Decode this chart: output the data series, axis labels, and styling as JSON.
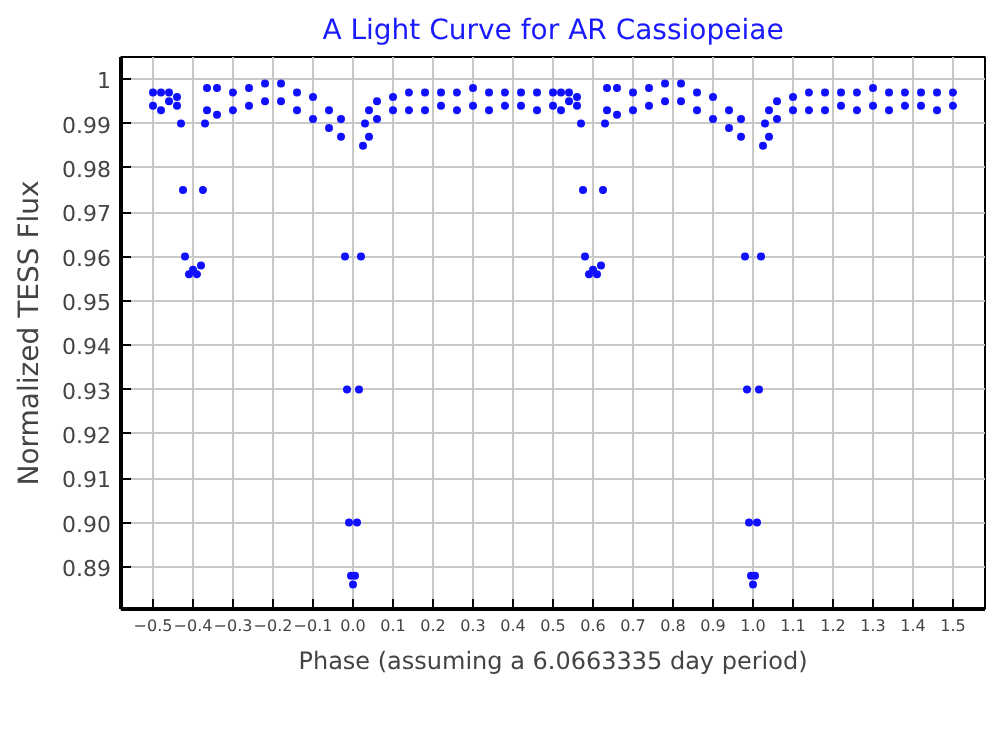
{
  "chart_data": {
    "type": "scatter",
    "title": "A Light Curve for AR Cassiopeiae",
    "xlabel": "Phase (assuming a 6.0663335 day period)",
    "ylabel": "Normalized TESS Flux",
    "xlim": [
      -0.58,
      1.58
    ],
    "ylim": [
      0.8805,
      1.005
    ],
    "xticks": [
      -0.5,
      -0.4,
      -0.3,
      -0.2,
      -0.1,
      {
        "value": 0,
        "label": "0.0"
      },
      0.1,
      0.2,
      0.3,
      0.4,
      0.5,
      0.6,
      0.7,
      0.8,
      0.9,
      {
        "value": 1,
        "label": "1.0"
      },
      1.1,
      1.2,
      1.3,
      1.4,
      1.5
    ],
    "yticks": [
      0.89,
      {
        "value": 0.9,
        "label": "0.90"
      },
      0.91,
      0.92,
      0.93,
      0.94,
      0.95,
      0.96,
      0.97,
      0.98,
      0.99,
      1
    ],
    "grid": true,
    "marker": "circle",
    "series": [
      {
        "color": "#1010ff",
        "x": [
          -0.5,
          -0.5,
          -0.48,
          -0.48,
          -0.46,
          -0.46,
          -0.44,
          -0.44,
          -0.43,
          -0.425,
          -0.42,
          -0.41,
          -0.4,
          -0.39,
          -0.38,
          -0.375,
          -0.37,
          -0.365,
          -0.365,
          -0.34,
          -0.34,
          -0.3,
          -0.3,
          -0.26,
          -0.26,
          -0.22,
          -0.22,
          -0.18,
          -0.18,
          -0.14,
          -0.14,
          -0.1,
          -0.1,
          -0.06,
          -0.06,
          -0.03,
          -0.03,
          -0.02,
          -0.015,
          -0.01,
          -0.005,
          0,
          0.005,
          0.01,
          0.015,
          0.02,
          0.025,
          0.03,
          0.04,
          0.04,
          0.06,
          0.06,
          0.1,
          0.1,
          0.14,
          0.14,
          0.18,
          0.18,
          0.22,
          0.22,
          0.26,
          0.26,
          0.3,
          0.3,
          0.34,
          0.34,
          0.38,
          0.38,
          0.42,
          0.42,
          0.46,
          0.46,
          0.5,
          0.5,
          0.52,
          0.52,
          0.54,
          0.54,
          0.56,
          0.56,
          0.57,
          0.575,
          0.58,
          0.59,
          0.6,
          0.61,
          0.62,
          0.625,
          0.63,
          0.635,
          0.635,
          0.66,
          0.66,
          0.7,
          0.7,
          0.74,
          0.74,
          0.78,
          0.78,
          0.82,
          0.82,
          0.86,
          0.86,
          0.9,
          0.9,
          0.94,
          0.94,
          0.97,
          0.97,
          0.98,
          0.985,
          0.99,
          0.995,
          1,
          1.005,
          1.01,
          1.015,
          1.02,
          1.025,
          1.03,
          1.04,
          1.04,
          1.06,
          1.06,
          1.1,
          1.1,
          1.14,
          1.14,
          1.18,
          1.18,
          1.22,
          1.22,
          1.26,
          1.26,
          1.3,
          1.3,
          1.34,
          1.34,
          1.38,
          1.38,
          1.42,
          1.42,
          1.46,
          1.46,
          1.5,
          1.5
        ],
        "values": [
          0.997,
          0.994,
          0.997,
          0.993,
          0.997,
          0.995,
          0.996,
          0.994,
          0.99,
          0.975,
          0.96,
          0.956,
          0.957,
          0.956,
          0.958,
          0.975,
          0.99,
          0.998,
          0.993,
          0.998,
          0.992,
          0.997,
          0.993,
          0.998,
          0.994,
          0.999,
          0.995,
          0.999,
          0.995,
          0.997,
          0.993,
          0.996,
          0.991,
          0.993,
          0.989,
          0.991,
          0.987,
          0.96,
          0.93,
          0.9,
          0.888,
          0.886,
          0.888,
          0.9,
          0.93,
          0.96,
          0.985,
          0.99,
          0.993,
          0.987,
          0.995,
          0.991,
          0.996,
          0.993,
          0.997,
          0.993,
          0.997,
          0.993,
          0.997,
          0.994,
          0.997,
          0.993,
          0.998,
          0.994,
          0.997,
          0.993,
          0.997,
          0.994,
          0.997,
          0.994,
          0.997,
          0.993,
          0.997,
          0.994,
          0.997,
          0.993,
          0.997,
          0.995,
          0.996,
          0.994,
          0.99,
          0.975,
          0.96,
          0.956,
          0.957,
          0.956,
          0.958,
          0.975,
          0.99,
          0.998,
          0.993,
          0.998,
          0.992,
          0.997,
          0.993,
          0.998,
          0.994,
          0.999,
          0.995,
          0.999,
          0.995,
          0.997,
          0.993,
          0.996,
          0.991,
          0.993,
          0.989,
          0.991,
          0.987,
          0.96,
          0.93,
          0.9,
          0.888,
          0.886,
          0.888,
          0.9,
          0.93,
          0.96,
          0.985,
          0.99,
          0.993,
          0.987,
          0.995,
          0.991,
          0.996,
          0.993,
          0.997,
          0.993,
          0.997,
          0.993,
          0.997,
          0.994,
          0.997,
          0.993,
          0.998,
          0.994,
          0.997,
          0.993,
          0.997,
          0.994,
          0.997,
          0.994,
          0.997,
          0.993,
          0.997,
          0.994
        ]
      }
    ]
  }
}
